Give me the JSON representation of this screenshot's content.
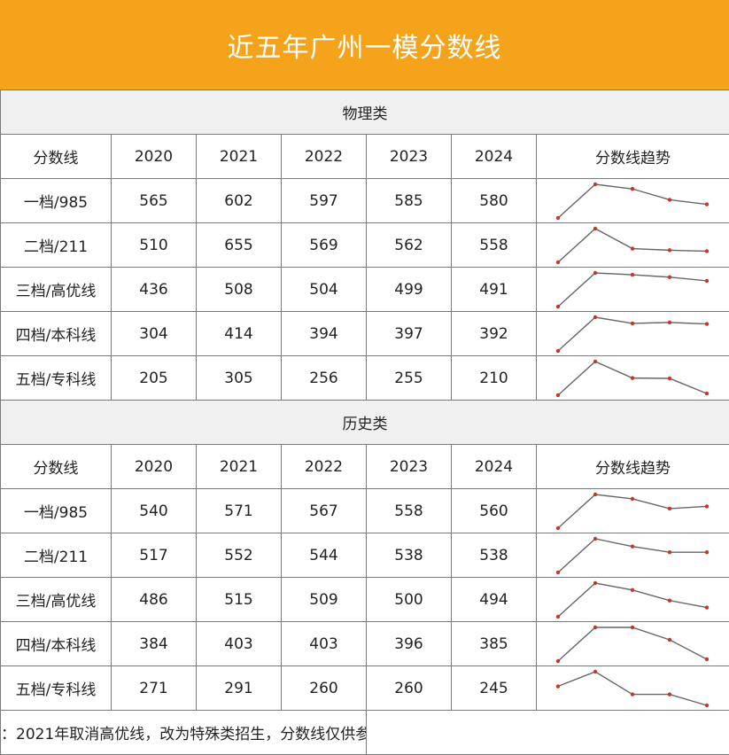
{
  "title": "近五年广州一模分数线",
  "headers": [
    "分数线",
    "2020",
    "2021",
    "2022",
    "2023",
    "2024",
    "分数线趋势"
  ],
  "sections": [
    {
      "name": "物理类",
      "rows": [
        {
          "label": "一档/985",
          "values": [
            565,
            602,
            597,
            585,
            580
          ]
        },
        {
          "label": "二档/211",
          "values": [
            510,
            655,
            569,
            562,
            558
          ]
        },
        {
          "label": "三档/高优线",
          "values": [
            436,
            508,
            504,
            499,
            491
          ]
        },
        {
          "label": "四档/本科线",
          "values": [
            304,
            414,
            394,
            397,
            392
          ]
        },
        {
          "label": "五档/专科线",
          "values": [
            205,
            305,
            256,
            255,
            210
          ]
        }
      ]
    },
    {
      "name": "历史类",
      "rows": [
        {
          "label": "一档/985",
          "values": [
            540,
            571,
            567,
            558,
            560
          ]
        },
        {
          "label": "二档/211",
          "values": [
            517,
            552,
            544,
            538,
            538
          ]
        },
        {
          "label": "三档/高优线",
          "values": [
            486,
            515,
            509,
            500,
            494
          ]
        },
        {
          "label": "四档/本科线",
          "values": [
            384,
            403,
            403,
            396,
            385
          ]
        },
        {
          "label": "五档/专科线",
          "values": [
            271,
            291,
            260,
            260,
            245
          ]
        }
      ]
    }
  ],
  "note": "：2021年取消高优线，改为特殊类招生，分数线仅供参",
  "colors": {
    "header_bg": "#f5a31a",
    "line": "#666666",
    "point": "#c0392b"
  }
}
